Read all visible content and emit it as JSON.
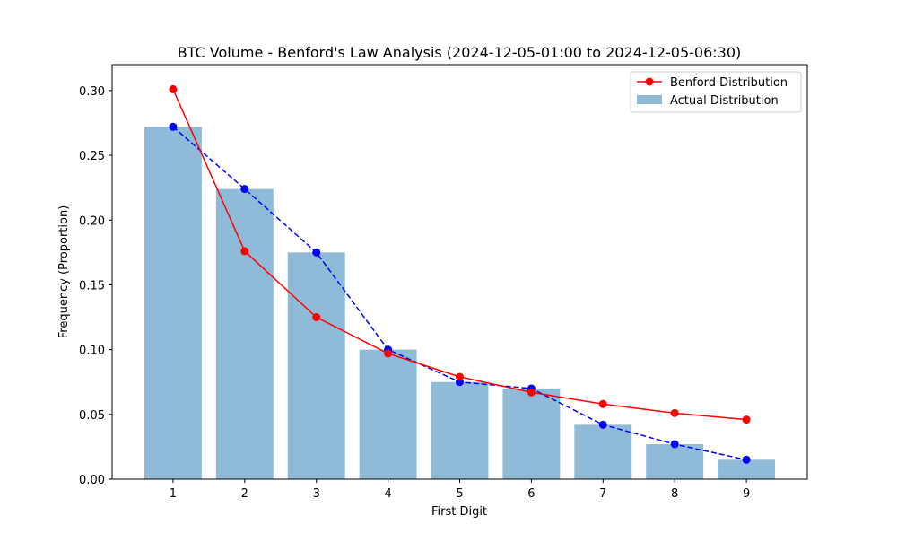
{
  "chart_data": {
    "type": "bar",
    "title": "BTC Volume - Benford's Law Analysis (2024-12-05-01:00 to 2024-12-05-06:30)",
    "xlabel": "First Digit",
    "ylabel": "Frequency (Proportion)",
    "categories": [
      "1",
      "2",
      "3",
      "4",
      "5",
      "6",
      "7",
      "8",
      "9"
    ],
    "x": [
      1,
      2,
      3,
      4,
      5,
      6,
      7,
      8,
      9
    ],
    "ylim": [
      0,
      0.32
    ],
    "yticks": [
      0.0,
      0.05,
      0.1,
      0.15,
      0.2,
      0.25,
      0.3
    ],
    "ytick_labels": [
      "0.00",
      "0.05",
      "0.10",
      "0.15",
      "0.20",
      "0.25",
      "0.30"
    ],
    "grid": false,
    "legend_position": "top-right",
    "series": [
      {
        "name": "Benford Distribution",
        "type": "line",
        "style": "solid",
        "marker": "circle",
        "color": "#ff0000",
        "values": [
          0.301,
          0.176,
          0.125,
          0.097,
          0.079,
          0.067,
          0.058,
          0.051,
          0.046
        ]
      },
      {
        "name": "Actual Distribution",
        "type": "bar",
        "color": "#1f77b4",
        "opacity": 0.5,
        "values": [
          0.272,
          0.224,
          0.175,
          0.1,
          0.075,
          0.07,
          0.042,
          0.027,
          0.015
        ]
      },
      {
        "type": "line",
        "style": "dashed",
        "marker": "circle",
        "color": "#0000ff",
        "values": [
          0.272,
          0.224,
          0.175,
          0.1,
          0.075,
          0.07,
          0.042,
          0.027,
          0.015
        ]
      }
    ]
  }
}
